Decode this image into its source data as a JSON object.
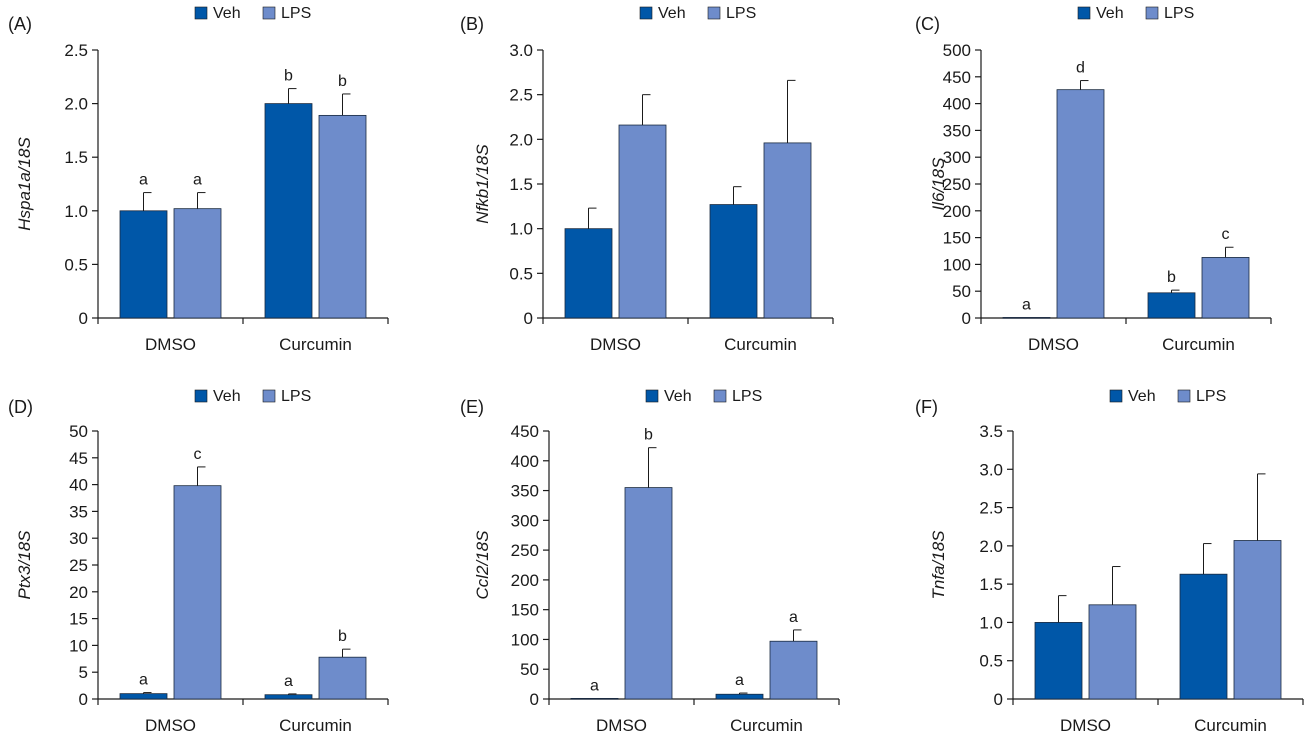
{
  "legend_labels": [
    "Veh",
    "LPS"
  ],
  "colors": {
    "veh": "#0057a8",
    "lps": "#6e8ccb",
    "axis": "#1a1a1a"
  },
  "chart_data": [
    {
      "panel": "(A)",
      "type": "bar",
      "categories": [
        "DMSO",
        "Curcumin"
      ],
      "series": [
        {
          "name": "Veh",
          "values": [
            1.0,
            2.0
          ],
          "errors": [
            0.17,
            0.14
          ],
          "letters": [
            "a",
            "b"
          ]
        },
        {
          "name": "LPS",
          "values": [
            1.02,
            1.89
          ],
          "errors": [
            0.15,
            0.2
          ],
          "letters": [
            "a",
            "b"
          ]
        }
      ],
      "ylabel": "Hspa1a/18S",
      "ylim": [
        0,
        2.5
      ],
      "yticks": [
        "0",
        "0.5",
        "1.0",
        "1.5",
        "2.0",
        "2.5"
      ],
      "legend": "top-center",
      "grid": false
    },
    {
      "panel": "(B)",
      "type": "bar",
      "categories": [
        "DMSO",
        "Curcumin"
      ],
      "series": [
        {
          "name": "Veh",
          "values": [
            1.0,
            1.27
          ],
          "errors": [
            0.23,
            0.2
          ],
          "letters": [
            "",
            ""
          ]
        },
        {
          "name": "LPS",
          "values": [
            2.16,
            1.96
          ],
          "errors": [
            0.34,
            0.7
          ],
          "letters": [
            "",
            ""
          ]
        }
      ],
      "ylabel": "Nfkb1/18S",
      "ylim": [
        0,
        3.0
      ],
      "yticks": [
        "0",
        "0.5",
        "1.0",
        "1.5",
        "2.0",
        "2.5",
        "3.0"
      ],
      "legend": "top-center",
      "grid": false
    },
    {
      "panel": "(C)",
      "type": "bar",
      "categories": [
        "DMSO",
        "Curcumin"
      ],
      "series": [
        {
          "name": "Veh",
          "values": [
            1,
            47
          ],
          "errors": [
            0,
            5
          ],
          "letters": [
            "a",
            "b"
          ]
        },
        {
          "name": "LPS",
          "values": [
            426,
            113
          ],
          "errors": [
            17,
            19
          ],
          "letters": [
            "d",
            "c"
          ]
        }
      ],
      "ylabel": "Il6/18S",
      "ylim": [
        0,
        500
      ],
      "yticks": [
        "0",
        "50",
        "100",
        "150",
        "200",
        "250",
        "300",
        "350",
        "400",
        "450",
        "500"
      ],
      "legend": "top-center",
      "grid": false
    },
    {
      "panel": "(D)",
      "type": "bar",
      "categories": [
        "DMSO",
        "Curcumin"
      ],
      "series": [
        {
          "name": "Veh",
          "values": [
            1.0,
            0.8
          ],
          "errors": [
            0.2,
            0.15
          ],
          "letters": [
            "a",
            "a"
          ]
        },
        {
          "name": "LPS",
          "values": [
            39.8,
            7.8
          ],
          "errors": [
            3.5,
            1.5
          ],
          "letters": [
            "c",
            "b"
          ]
        }
      ],
      "ylabel": "Ptx3/18S",
      "ylim": [
        0,
        50
      ],
      "yticks": [
        "0",
        "5",
        "10",
        "15",
        "20",
        "25",
        "30",
        "35",
        "40",
        "45",
        "50"
      ],
      "legend": "top-center",
      "grid": false
    },
    {
      "panel": "(E)",
      "type": "bar",
      "categories": [
        "DMSO",
        "Curcumin"
      ],
      "series": [
        {
          "name": "Veh",
          "values": [
            1,
            8
          ],
          "errors": [
            0,
            2
          ],
          "letters": [
            "a",
            "a"
          ]
        },
        {
          "name": "LPS",
          "values": [
            355,
            97
          ],
          "errors": [
            67,
            19
          ],
          "letters": [
            "b",
            "a"
          ]
        }
      ],
      "ylabel": "Ccl2/18S",
      "ylim": [
        0,
        450
      ],
      "yticks": [
        "0",
        "50",
        "100",
        "150",
        "200",
        "250",
        "300",
        "350",
        "400",
        "450"
      ],
      "legend": "top-center",
      "grid": false
    },
    {
      "panel": "(F)",
      "type": "bar",
      "categories": [
        "DMSO",
        "Curcumin"
      ],
      "series": [
        {
          "name": "Veh",
          "values": [
            1.0,
            1.63
          ],
          "errors": [
            0.35,
            0.4
          ],
          "letters": [
            "",
            ""
          ]
        },
        {
          "name": "LPS",
          "values": [
            1.23,
            2.07
          ],
          "errors": [
            0.5,
            0.87
          ],
          "letters": [
            "",
            ""
          ]
        }
      ],
      "ylabel": "Tnfa/18S",
      "ylim": [
        0,
        3.5
      ],
      "yticks": [
        "0",
        "0.5",
        "1.0",
        "1.5",
        "2.0",
        "2.5",
        "3.0",
        "3.5"
      ],
      "legend": "top-center",
      "grid": false
    }
  ]
}
